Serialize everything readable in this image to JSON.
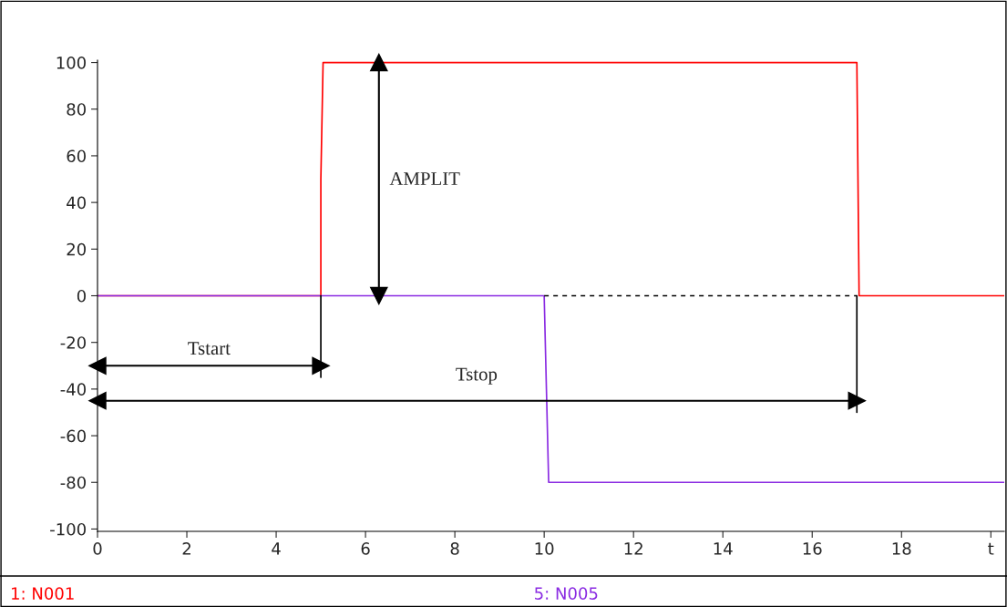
{
  "chart_data": {
    "type": "step",
    "xlim": [
      0,
      20.3
    ],
    "ylim": [
      -101,
      101
    ],
    "xticks": [
      0,
      2,
      4,
      6,
      8,
      10,
      12,
      14,
      16,
      18,
      {
        "value": 20,
        "label": "t"
      }
    ],
    "yticks": [
      -100,
      -80,
      -60,
      -40,
      -20,
      0,
      20,
      40,
      60,
      80,
      100
    ],
    "grid": false,
    "legend": "bottom",
    "series": [
      {
        "name": "1: N001",
        "color": "#ff0000",
        "x": [
          0,
          5,
          5,
          5.05,
          17,
          17.05,
          20.3
        ],
        "values": [
          0,
          0,
          50,
          100,
          100,
          0,
          0
        ]
      },
      {
        "name": "5: N005",
        "color": "#8a2be2",
        "x": [
          0,
          10,
          10.05,
          10.1,
          20.3
        ],
        "values": [
          0,
          0,
          -40,
          -80,
          -80
        ]
      },
      {
        "type": "line",
        "color": "#000000",
        "line_style": "dashed",
        "x": [
          10,
          17
        ],
        "values": [
          0,
          0
        ]
      },
      {
        "type": "line",
        "color": "#000000",
        "x": [
          5,
          5
        ],
        "values": [
          0,
          -35
        ]
      },
      {
        "type": "line",
        "color": "#000000",
        "x": [
          17,
          17
        ],
        "values": [
          0,
          -50
        ]
      },
      {
        "type": "line",
        "color": "#000000",
        "marker": "triangle",
        "x": [
          0,
          5
        ],
        "values": [
          -30,
          -30
        ]
      },
      {
        "type": "line",
        "color": "#000000",
        "marker": "triangle",
        "x": [
          0,
          17
        ],
        "values": [
          -45,
          -45
        ]
      },
      {
        "type": "line",
        "color": "#000000",
        "marker": "triangle",
        "x": [
          6.3,
          6.3
        ],
        "values": [
          0,
          100
        ]
      }
    ],
    "annotations": [
      "AMPLIT",
      "Tstart",
      "Tstop"
    ]
  }
}
